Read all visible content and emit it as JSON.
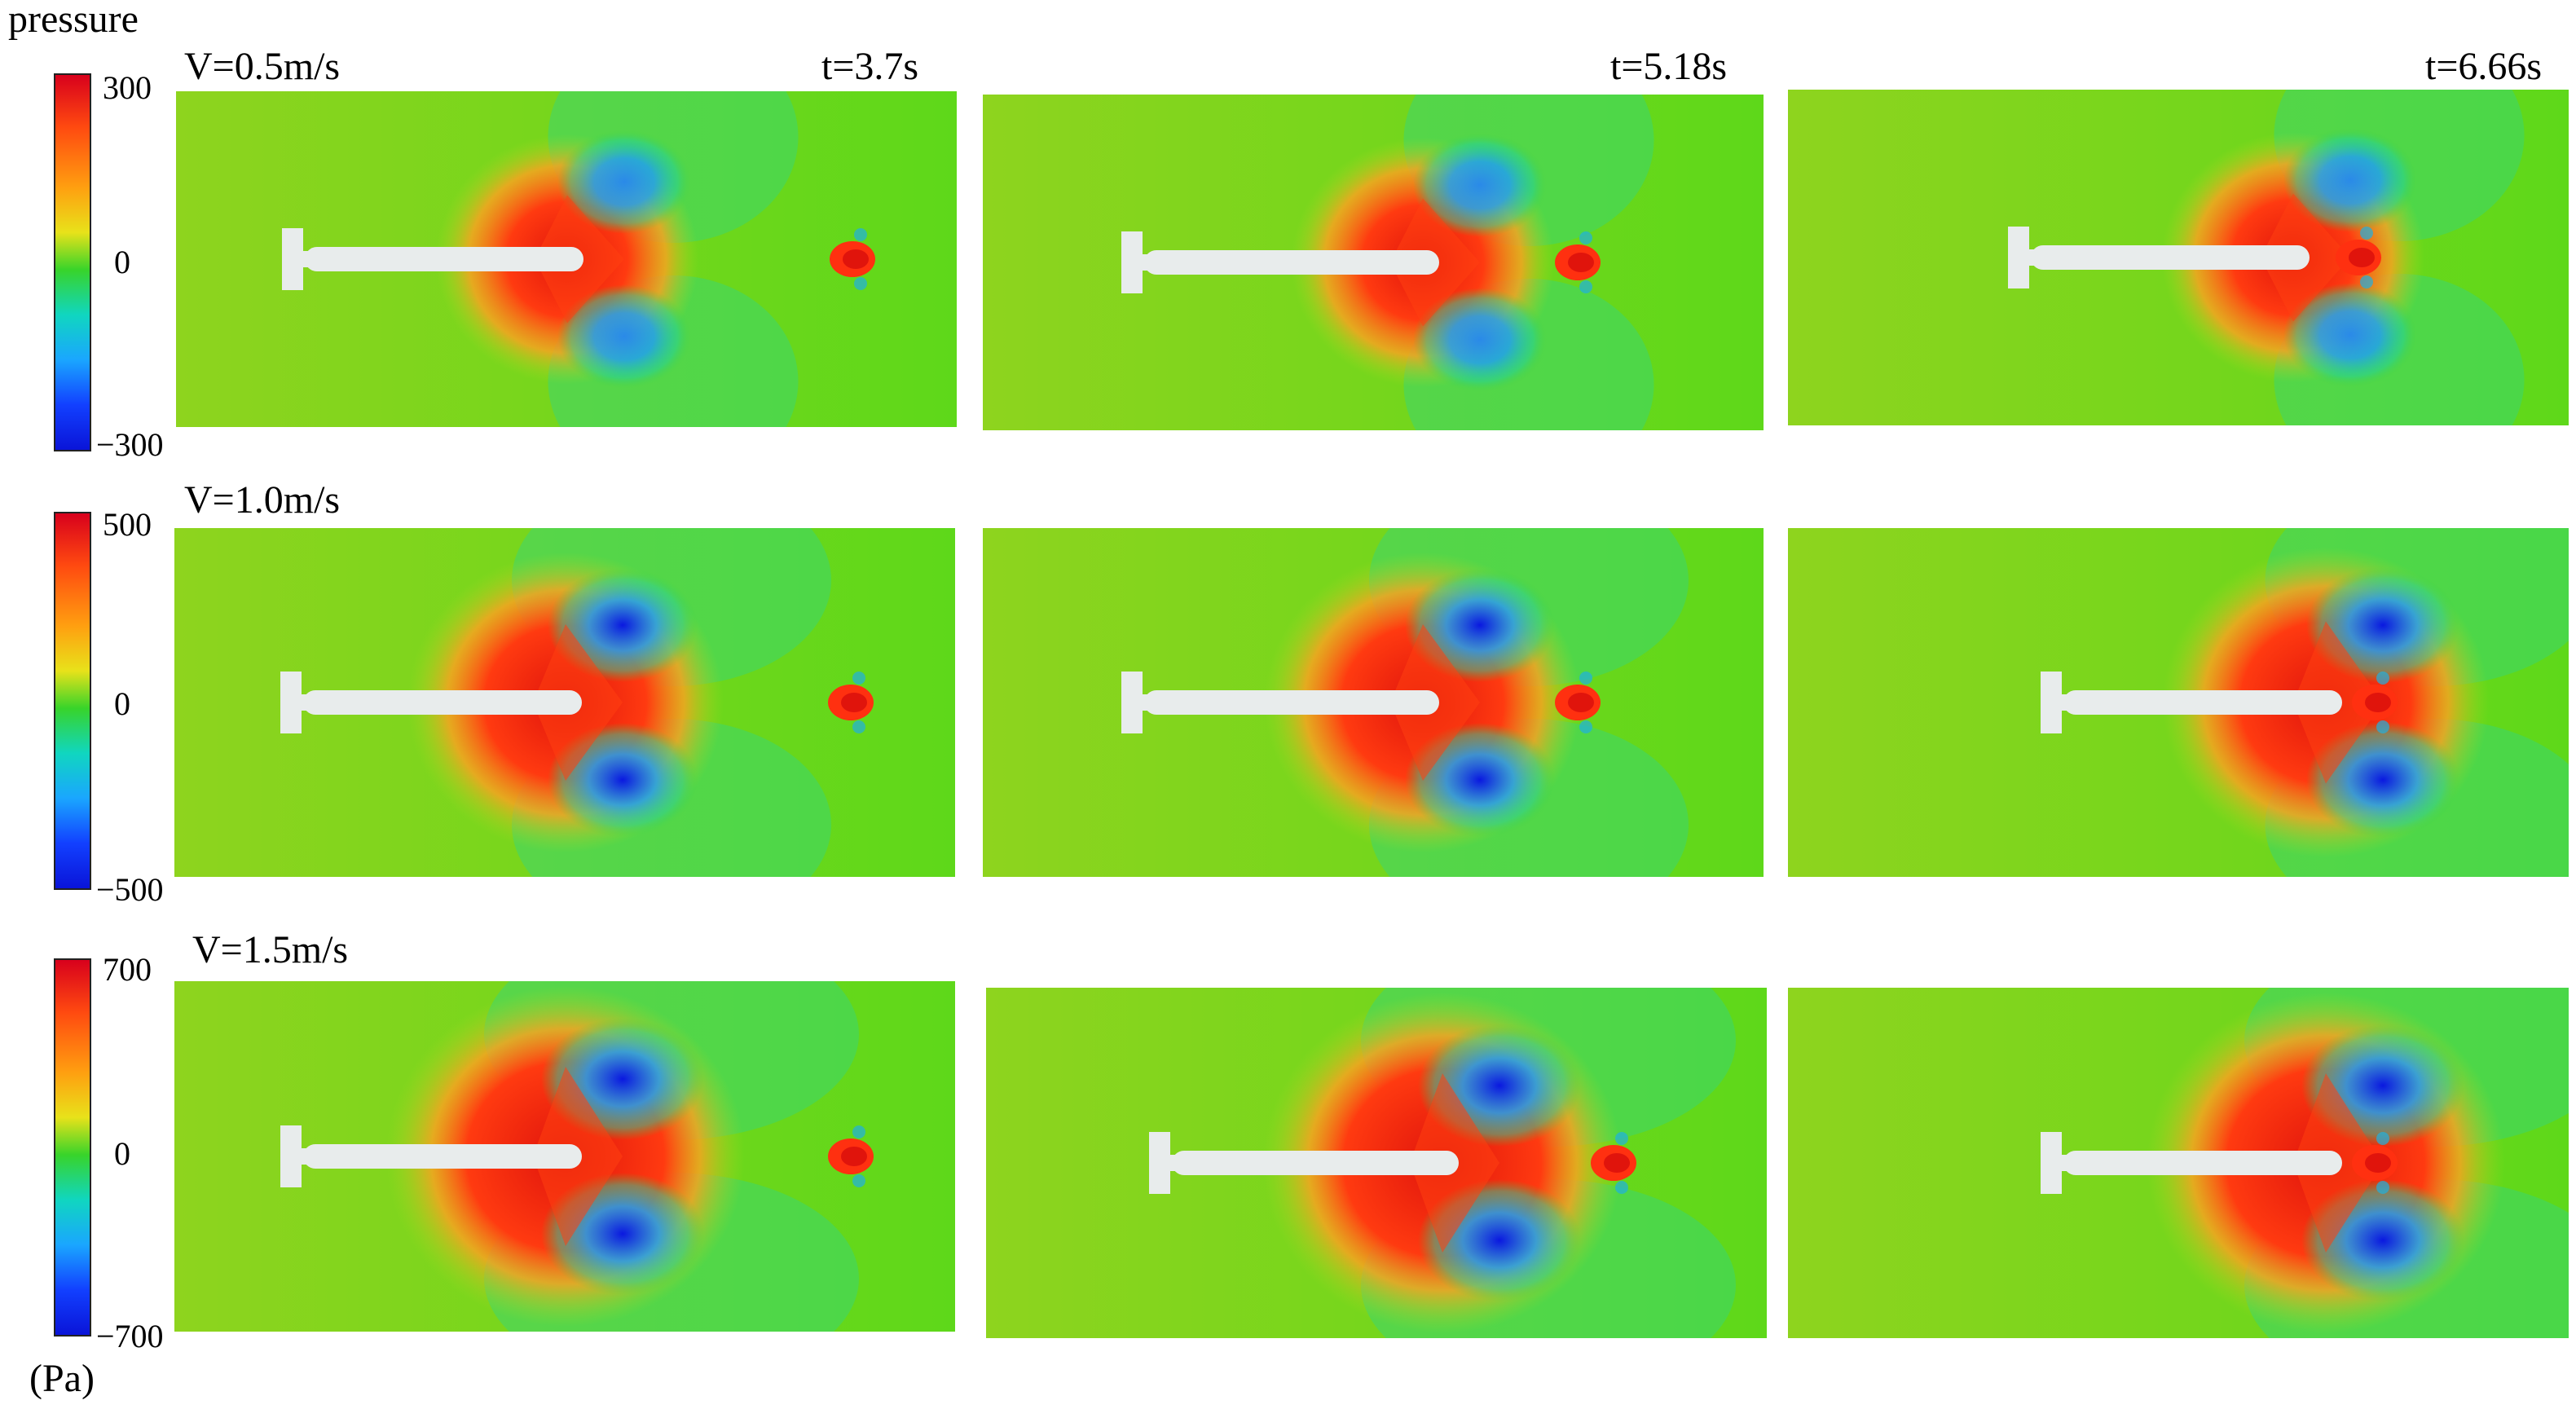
{
  "legend": {
    "title": "pressure",
    "unit": "(Pa)"
  },
  "rows": [
    {
      "label": "V=0.5m/s",
      "ticks": {
        "max": "300",
        "mid": "0",
        "min": "−300"
      }
    },
    {
      "label": "V=1.0m/s",
      "ticks": {
        "max": "500",
        "mid": "0",
        "min": "−500"
      }
    },
    {
      "label": "V=1.5m/s",
      "ticks": {
        "max": "700",
        "mid": "0",
        "min": "−700"
      }
    }
  ],
  "columns": [
    {
      "time": "t=3.7s"
    },
    {
      "time": "t=5.18s"
    },
    {
      "time": "t=6.66s"
    }
  ],
  "colors": {
    "background_field": "#7ad42a",
    "high_pressure": "#e81a10",
    "low_pressure": "#1030e8",
    "body": "#e8ecec"
  }
}
